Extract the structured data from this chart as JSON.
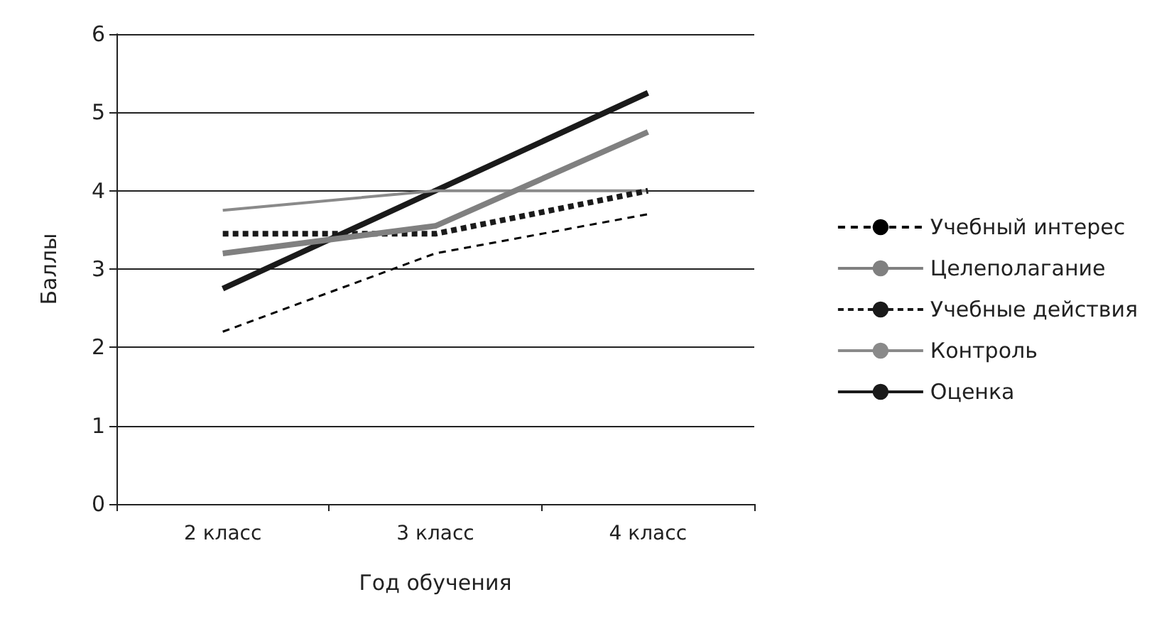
{
  "chart_data": {
    "type": "line",
    "xlabel": "Год обучения",
    "ylabel": "Баллы",
    "categories": [
      "2 класс",
      "3 класс",
      "4 класс"
    ],
    "series": [
      {
        "name": "Учебный интерес",
        "color": "#000000",
        "line_style": "dashed",
        "values": [
          2.2,
          3.2,
          3.7
        ]
      },
      {
        "name": "Целеполагание",
        "color": "#808080",
        "line_style": "solid",
        "values": [
          3.2,
          3.55,
          4.75
        ]
      },
      {
        "name": "Учебные действия",
        "color": "#1a1a1a",
        "line_style": "dotted",
        "values": [
          3.45,
          3.45,
          4.0
        ]
      },
      {
        "name": "Контроль",
        "color": "#8a8a8a",
        "line_style": "solid",
        "values": [
          3.75,
          4.0,
          4.0
        ]
      },
      {
        "name": "Оценка",
        "color": "#1a1a1a",
        "line_style": "solid",
        "values": [
          2.75,
          4.0,
          5.25
        ]
      }
    ],
    "ylim": [
      0,
      6
    ],
    "yticks": [
      0,
      1,
      2,
      3,
      4,
      5,
      6
    ],
    "grid": "y",
    "legend": "right",
    "marker": "none"
  }
}
